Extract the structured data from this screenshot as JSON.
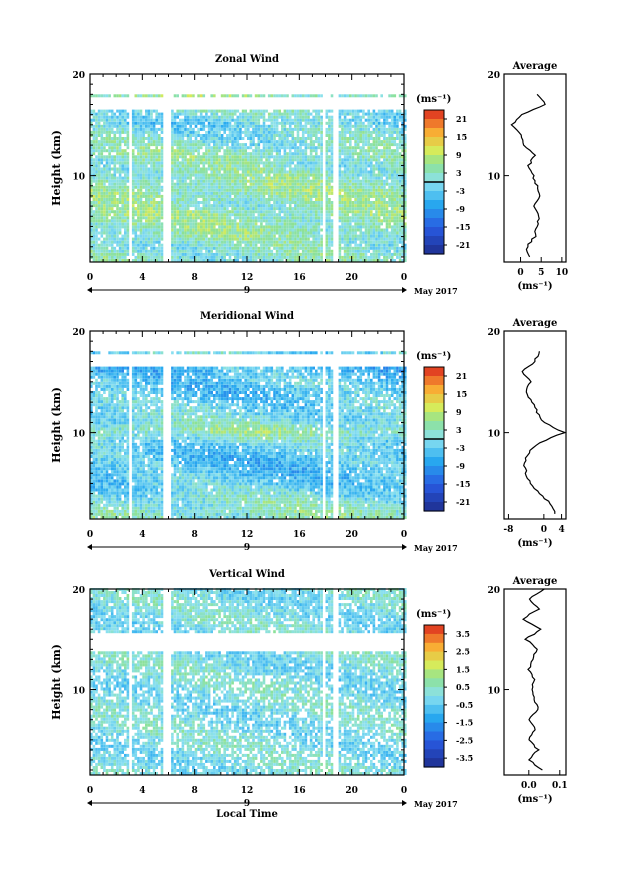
{
  "chart_data": [
    {
      "type": "heatmap",
      "title": "Zonal Wind",
      "ylabel": "Height (km)",
      "xlabel": "",
      "x_ticks": [
        "0",
        "4",
        "8",
        "12",
        "16",
        "20",
        "0"
      ],
      "y_ticks": [
        "20",
        "10"
      ],
      "xlim": [
        0,
        24
      ],
      "ylim": [
        1.5,
        20
      ],
      "date_axis": {
        "mark": "9",
        "label": "May 2017"
      },
      "colorbar": {
        "unit": "(ms⁻¹)",
        "ticks": [
          "21",
          "15",
          "9",
          "3",
          "-3",
          "-9",
          "-15",
          "-21"
        ],
        "range": [
          -24,
          24
        ],
        "zero_line": 0
      },
      "gaps_hours": [
        [
          2.9,
          3.2
        ],
        [
          5.5,
          6.1
        ],
        [
          17.6,
          17.9
        ],
        [
          18.5,
          18.8
        ]
      ],
      "empty_height_band_km": [
        16.3,
        17.5
      ],
      "data_top_km": 18.0,
      "profile_km": [
        2,
        3,
        4,
        5,
        6,
        7,
        8,
        9,
        10,
        11,
        12,
        13,
        14,
        15,
        16,
        17,
        18
      ],
      "profile_values": [
        2.0,
        1.5,
        3.5,
        4.0,
        4.5,
        3.0,
        4.5,
        4.0,
        3.0,
        2.0,
        3.5,
        1.0,
        0.0,
        -2.0,
        0.5,
        6.0,
        4.0
      ],
      "average": {
        "title": "Average",
        "unit": "(ms⁻¹)",
        "x_ticks": [
          "0",
          "5",
          "10"
        ],
        "xlim": [
          -4,
          11
        ]
      }
    },
    {
      "type": "heatmap",
      "title": "Meridional Wind",
      "ylabel": "Height (km)",
      "xlabel": "",
      "x_ticks": [
        "0",
        "4",
        "8",
        "12",
        "16",
        "20",
        "0"
      ],
      "y_ticks": [
        "20",
        "10"
      ],
      "xlim": [
        0,
        24
      ],
      "ylim": [
        1.5,
        20
      ],
      "date_axis": {
        "mark": "9",
        "label": "May 2017"
      },
      "colorbar": {
        "unit": "(ms⁻¹)",
        "ticks": [
          "21",
          "15",
          "9",
          "3",
          "-3",
          "-9",
          "-15",
          "-21"
        ],
        "range": [
          -24,
          24
        ],
        "zero_line": 0
      },
      "gaps_hours": [
        [
          2.9,
          3.2
        ],
        [
          5.5,
          6.1
        ],
        [
          17.6,
          17.9
        ],
        [
          18.5,
          18.8
        ]
      ],
      "empty_height_band_km": [
        16.3,
        17.5
      ],
      "data_top_km": 18.0,
      "profile_km": [
        2,
        3,
        4,
        5,
        6,
        7,
        8,
        9,
        10,
        11,
        12,
        13,
        14,
        15,
        16,
        17,
        18
      ],
      "profile_values": [
        2.5,
        1.5,
        -1.0,
        -3.0,
        -4.0,
        -4.5,
        -3.5,
        -1.0,
        4.5,
        0.0,
        -1.5,
        -2.5,
        -4.0,
        -3.0,
        -5.0,
        -2.0,
        -1.0
      ],
      "average": {
        "title": "Average",
        "unit": "(ms⁻¹)",
        "x_ticks": [
          "-8",
          "0",
          "4"
        ],
        "xlim": [
          -9,
          5
        ]
      }
    },
    {
      "type": "heatmap",
      "title": "Vertical Wind",
      "ylabel": "Height (km)",
      "xlabel": "Local Time",
      "x_ticks": [
        "0",
        "4",
        "8",
        "12",
        "16",
        "20",
        "0"
      ],
      "y_ticks": [
        "20",
        "10"
      ],
      "xlim": [
        0,
        24
      ],
      "ylim": [
        1.5,
        20
      ],
      "date_axis": {
        "mark": "9",
        "label": "May 2017"
      },
      "colorbar": {
        "unit": "(ms⁻¹)",
        "ticks": [
          "3.5",
          "2.5",
          "1.5",
          "0.5",
          "-0.5",
          "-1.5",
          "-2.5",
          "-3.5"
        ],
        "range": [
          -4,
          4
        ]
      },
      "gaps_hours": [
        [
          2.9,
          3.2
        ],
        [
          5.5,
          6.1
        ],
        [
          17.6,
          17.9
        ],
        [
          18.5,
          18.8
        ]
      ],
      "empty_height_band_km": [
        13.8,
        15.5
      ],
      "data_top_km": 20.0,
      "profile_km": [
        2,
        3,
        4,
        5,
        6,
        7,
        8,
        9,
        10,
        11,
        12,
        13,
        14,
        15,
        16,
        17,
        18,
        19,
        20
      ],
      "profile_values": [
        0.04,
        0.0,
        0.03,
        0.0,
        0.02,
        0.0,
        0.03,
        0.02,
        0.01,
        0.02,
        0.0,
        0.01,
        0.03,
        -0.01,
        0.04,
        -0.02,
        0.03,
        0.0,
        0.05
      ],
      "average": {
        "title": "Average",
        "unit": "(ms⁻¹)",
        "x_ticks": [
          "0.0",
          "0.1"
        ],
        "xlim": [
          -0.08,
          0.12
        ]
      }
    }
  ]
}
